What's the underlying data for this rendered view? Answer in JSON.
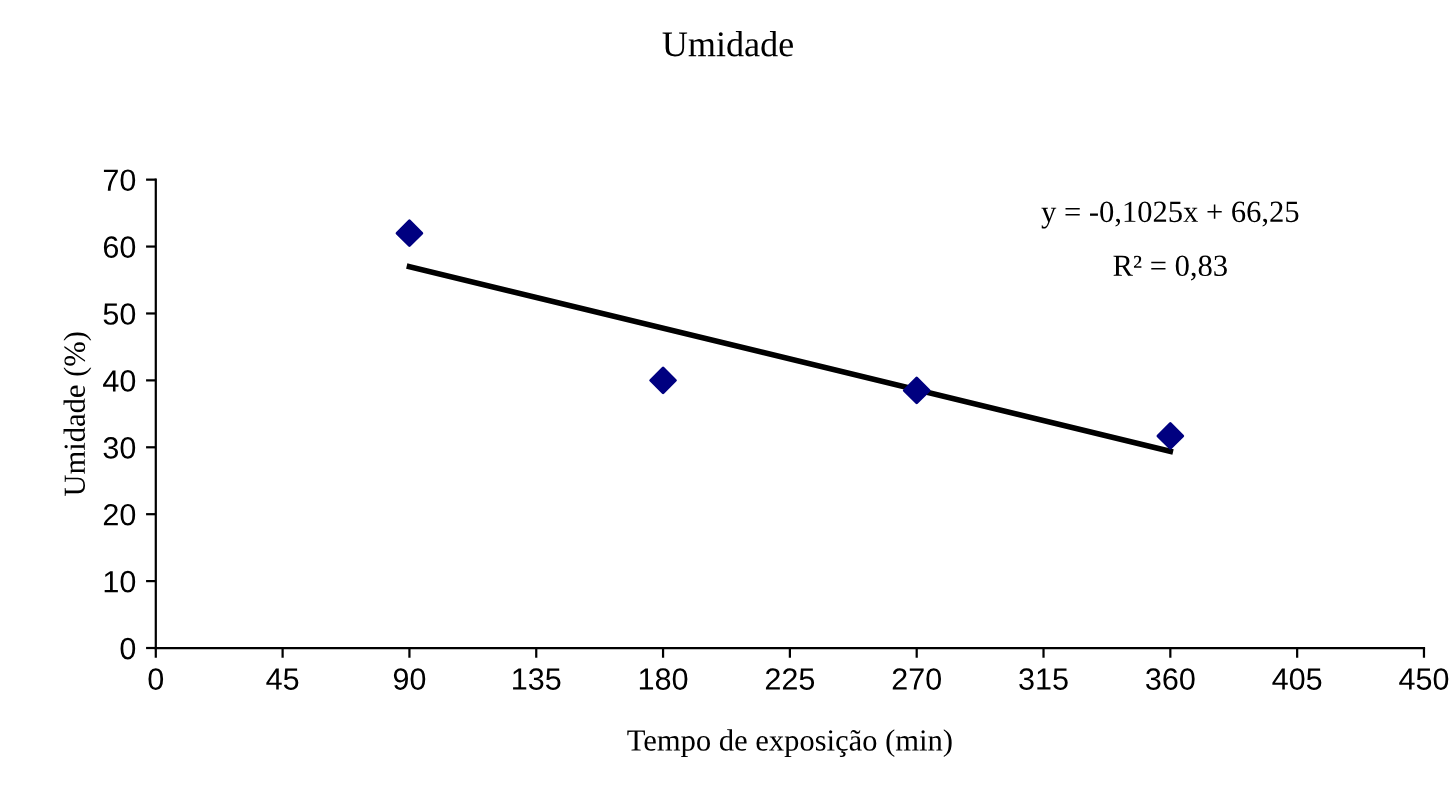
{
  "chart_data": {
    "type": "scatter",
    "title": "Umidade",
    "xlabel": "Tempo de exposição (min)",
    "ylabel": "Umidade (%)",
    "series": [
      {
        "color": "#000080",
        "x": [
          90,
          180,
          270,
          360
        ],
        "values": [
          62,
          40,
          38.5,
          31.7
        ],
        "marker": "diamond"
      },
      {
        "type": "line",
        "color": "#000000",
        "x": [
          90,
          360
        ],
        "values": [
          57.0,
          29.4
        ],
        "marker": "none"
      }
    ],
    "annotations": [
      "y = -0,1025x + 66,25",
      "R² = 0,83"
    ],
    "xlim": [
      0,
      450
    ],
    "xticks": [
      0,
      45,
      90,
      135,
      180,
      225,
      270,
      315,
      360,
      405,
      450
    ],
    "ylim": [
      0,
      70
    ],
    "yticks": [
      0,
      10,
      20,
      30,
      40,
      50,
      60,
      70
    ],
    "grid": false,
    "legend": false
  }
}
